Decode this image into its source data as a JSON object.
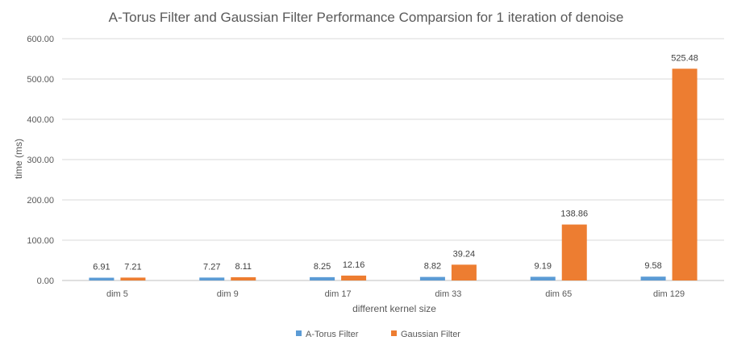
{
  "chart_data": {
    "type": "bar",
    "title": "A-Torus Filter and Gaussian Filter Performance Comparsion for 1 iteration of denoise",
    "xlabel": "different kernel size",
    "ylabel": "time (ms)",
    "categories": [
      "dim 5",
      "dim 9",
      "dim 17",
      "dim 33",
      "dim 65",
      "dim 129"
    ],
    "series": [
      {
        "name": "A-Torus Filter",
        "color": "#5B9BD5",
        "values": [
          6.91,
          7.27,
          8.25,
          8.82,
          9.19,
          9.58
        ]
      },
      {
        "name": "Gaussian Filter",
        "color": "#ED7D31",
        "values": [
          7.21,
          8.11,
          12.16,
          39.24,
          138.86,
          525.48
        ]
      }
    ],
    "ylim": [
      0,
      600
    ],
    "yticks": [
      "0.00",
      "100.00",
      "200.00",
      "300.00",
      "400.00",
      "500.00",
      "600.00"
    ],
    "data_label_decimals": 2,
    "grid": true,
    "legend": "bottom"
  }
}
